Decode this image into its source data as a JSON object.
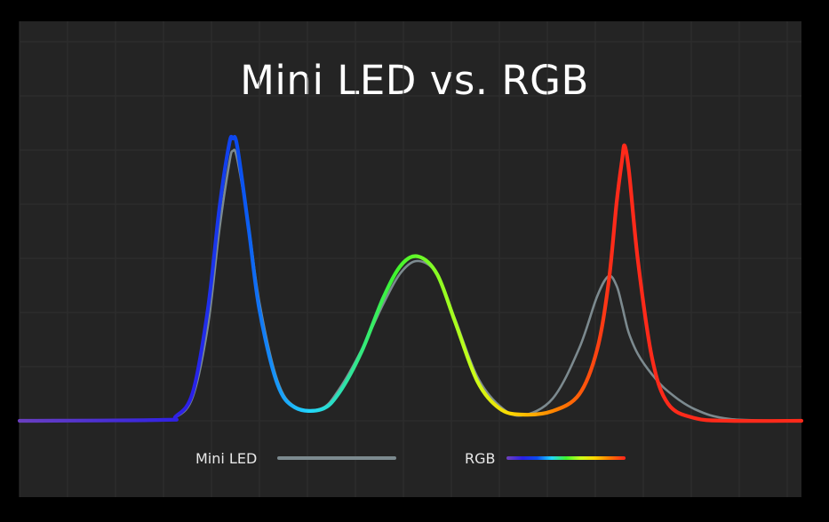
{
  "chart_data": {
    "type": "line",
    "title": "Mini LED vs. RGB",
    "xlabel": "",
    "ylabel": "",
    "grid": true,
    "legend": "bottom-center",
    "x": [
      0,
      160,
      176,
      195,
      212,
      225,
      236,
      240,
      245,
      258,
      270,
      290,
      310,
      340,
      360,
      385,
      410,
      430,
      449,
      470,
      490,
      515,
      540,
      565,
      600,
      630,
      650,
      663,
      672,
      678,
      681,
      686,
      696,
      712,
      730,
      760,
      800,
      880
    ],
    "series": [
      {
        "name": "Mini LED",
        "color": "#7c8a8f",
        "values": [
          0,
          1,
          4,
          27,
          107,
          216,
          290,
          304,
          295,
          218,
          133,
          46,
          16,
          14,
          36,
          80,
          133,
          168,
          180,
          165,
          115,
          50,
          17,
          6,
          25,
          82,
          140,
          163,
          152,
          130,
          117,
          98,
          75,
          52,
          33,
          13,
          2,
          0
        ]
      },
      {
        "name": "RGB",
        "colors": [
          "#6a3fc0",
          "#2a1fe8",
          "#0a4cf0",
          "#22d6ff",
          "#3ef52e",
          "#c9ff1a",
          "#ffd400",
          "#ff7a00",
          "#ff2a1a"
        ],
        "values": [
          0,
          1,
          5,
          32,
          126,
          240,
          312,
          318,
          309,
          215,
          125,
          42,
          15,
          13,
          32,
          78,
          140,
          176,
          185,
          165,
          112,
          45,
          14,
          7,
          11,
          30,
          80,
          156,
          246,
          293,
          310,
          280,
          180,
          70,
          19,
          3,
          0,
          0
        ]
      }
    ],
    "legend_entries": [
      "Mini LED",
      "RGB"
    ]
  }
}
